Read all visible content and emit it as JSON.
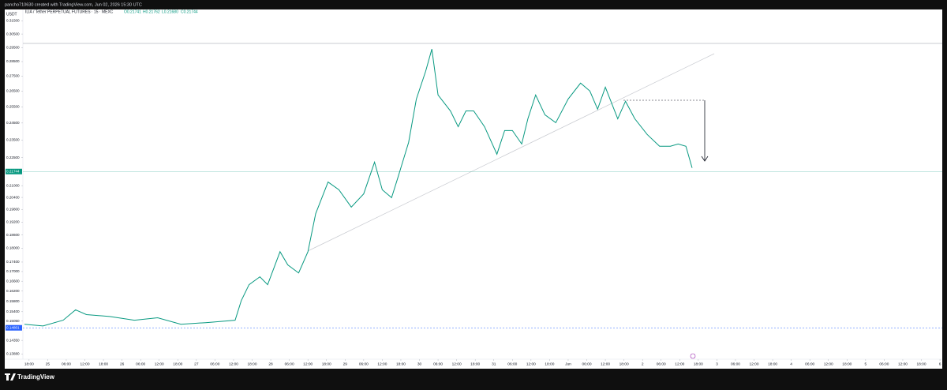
{
  "header": "pancho710630 created with TradingView.com, Jun 02, 2026 15:30 UTC",
  "brand": "TradingView",
  "chart_data": {
    "type": "line",
    "currency": "USDT",
    "title": "ILIA / Tether PERPETUAL FUTURES · 15 · MEXC",
    "ohlc": [
      "O0.21741",
      "H0.21762",
      "L0.21680",
      "C0.21744"
    ],
    "log_scale": true,
    "ylim": [
      0.137,
      0.319
    ],
    "yticks": [
      {
        "value": 0.315,
        "label": "0.31500"
      },
      {
        "value": 0.305,
        "label": "0.30500"
      },
      {
        "value": 0.295,
        "label": "0.29500"
      },
      {
        "value": 0.285,
        "label": "0.28500"
      },
      {
        "value": 0.275,
        "label": "0.27500"
      },
      {
        "value": 0.265,
        "label": "0.26500"
      },
      {
        "value": 0.255,
        "label": "0.25500"
      },
      {
        "value": 0.245,
        "label": "0.24500"
      },
      {
        "value": 0.235,
        "label": "0.23500"
      },
      {
        "value": 0.225,
        "label": "0.22500"
      },
      {
        "value": 0.21,
        "label": "0.21000"
      },
      {
        "value": 0.204,
        "label": "0.20400"
      },
      {
        "value": 0.198,
        "label": "0.19800"
      },
      {
        "value": 0.192,
        "label": "0.19200"
      },
      {
        "value": 0.186,
        "label": "0.18600"
      },
      {
        "value": 0.18,
        "label": "0.18000"
      },
      {
        "value": 0.174,
        "label": "0.17400"
      },
      {
        "value": 0.17,
        "label": "0.17000"
      },
      {
        "value": 0.166,
        "label": "0.16600"
      },
      {
        "value": 0.162,
        "label": "0.16200"
      },
      {
        "value": 0.158,
        "label": "0.15800"
      },
      {
        "value": 0.154,
        "label": "0.15400"
      },
      {
        "value": 0.1505,
        "label": "0.15050"
      },
      {
        "value": 0.1435,
        "label": "0.14350"
      },
      {
        "value": 0.1388,
        "label": "0.13880"
      }
    ],
    "xlim": [
      -2,
      295
    ],
    "xticks": [
      {
        "value": 0,
        "label": "18:00"
      },
      {
        "value": 6,
        "label": "25"
      },
      {
        "value": 12,
        "label": "06:00"
      },
      {
        "value": 18,
        "label": "12:00"
      },
      {
        "value": 24,
        "label": "18:00"
      },
      {
        "value": 30,
        "label": "26"
      },
      {
        "value": 36,
        "label": "06:00"
      },
      {
        "value": 42,
        "label": "12:00"
      },
      {
        "value": 48,
        "label": "18:00"
      },
      {
        "value": 54,
        "label": "27"
      },
      {
        "value": 60,
        "label": "06:00"
      },
      {
        "value": 66,
        "label": "12:00"
      },
      {
        "value": 72,
        "label": "18:00"
      },
      {
        "value": 78,
        "label": "28"
      },
      {
        "value": 84,
        "label": "06:00"
      },
      {
        "value": 90,
        "label": "12:00"
      },
      {
        "value": 96,
        "label": "18:00"
      },
      {
        "value": 102,
        "label": "29"
      },
      {
        "value": 108,
        "label": "06:00"
      },
      {
        "value": 114,
        "label": "12:00"
      },
      {
        "value": 120,
        "label": "18:00"
      },
      {
        "value": 126,
        "label": "30"
      },
      {
        "value": 132,
        "label": "06:00"
      },
      {
        "value": 138,
        "label": "12:00"
      },
      {
        "value": 144,
        "label": "18:00"
      },
      {
        "value": 150,
        "label": "31"
      },
      {
        "value": 156,
        "label": "06:00"
      },
      {
        "value": 162,
        "label": "12:00"
      },
      {
        "value": 168,
        "label": "18:00"
      },
      {
        "value": 174,
        "label": "Jun"
      },
      {
        "value": 180,
        "label": "06:00"
      },
      {
        "value": 186,
        "label": "12:00"
      },
      {
        "value": 192,
        "label": "18:00"
      },
      {
        "value": 198,
        "label": "2"
      },
      {
        "value": 204,
        "label": "06:00"
      },
      {
        "value": 210,
        "label": "12:00"
      },
      {
        "value": 216,
        "label": "18:00"
      },
      {
        "value": 222,
        "label": "3"
      },
      {
        "value": 228,
        "label": "06:00"
      },
      {
        "value": 234,
        "label": "12:00"
      },
      {
        "value": 240,
        "label": "18:00"
      },
      {
        "value": 246,
        "label": "4"
      },
      {
        "value": 252,
        "label": "06:00"
      },
      {
        "value": 258,
        "label": "12:00"
      },
      {
        "value": 264,
        "label": "18:00"
      },
      {
        "value": 270,
        "label": "5"
      },
      {
        "value": 276,
        "label": "06:00"
      },
      {
        "value": 282,
        "label": "12:00"
      },
      {
        "value": 288,
        "label": "18:00"
      },
      {
        "value": 294,
        "label": "6"
      }
    ],
    "price_markers": [
      {
        "value": 0.21744,
        "label": "0.21744",
        "color": "#089981"
      },
      {
        "value": 0.14801,
        "label": "0.14801",
        "color": "#2962ff"
      }
    ],
    "series": [
      {
        "name": "ILIAUSDT.P",
        "color": "#089981",
        "x": [
          -1.5,
          4.5,
          11,
          15,
          18.5,
          26,
          34,
          41.5,
          49,
          57,
          66.5,
          68.5,
          71,
          74.5,
          77,
          81,
          83.5,
          87,
          90,
          92.5,
          96.5,
          100,
          104,
          108,
          111.5,
          114,
          117,
          119,
          122.5,
          125,
          128,
          130,
          132,
          136,
          138.5,
          141,
          143.5,
          147,
          151,
          153.5,
          156,
          159,
          161,
          163.5,
          166.5,
          170,
          174,
          178,
          181,
          183.5,
          186,
          190,
          192.5,
          195.5,
          199.5,
          203.5,
          207,
          209.5,
          212,
          214
        ],
        "values": [
          0.1493,
          0.1487,
          0.1508,
          0.1547,
          0.1529,
          0.1522,
          0.1508,
          0.1517,
          0.1493,
          0.1499,
          0.1508,
          0.1583,
          0.1646,
          0.1678,
          0.1646,
          0.1785,
          0.1728,
          0.1694,
          0.1785,
          0.196,
          0.2119,
          0.2079,
          0.1992,
          0.2058,
          0.2225,
          0.2079,
          0.2039,
          0.214,
          0.2336,
          0.2599,
          0.2783,
          0.2939,
          0.2625,
          0.2524,
          0.2428,
          0.2524,
          0.2524,
          0.2428,
          0.2269,
          0.2405,
          0.2405,
          0.2327,
          0.2476,
          0.2625,
          0.25,
          0.2452,
          0.2599,
          0.2703,
          0.2651,
          0.2535,
          0.2676,
          0.2476,
          0.2585,
          0.2476,
          0.2382,
          0.2314,
          0.2314,
          0.2327,
          0.2314,
          0.2194
        ]
      }
    ]
  }
}
